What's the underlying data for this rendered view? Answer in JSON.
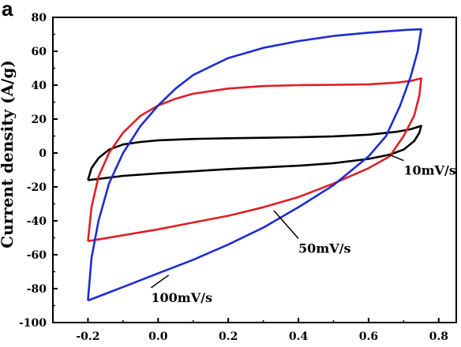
{
  "chart_data": {
    "type": "line",
    "panel_label": "a",
    "ylabel": "Current density (A/g)",
    "xlabel": "",
    "xlim": [
      -0.3,
      0.85
    ],
    "ylim": [
      -100,
      80
    ],
    "xticks": [
      "-0.2",
      "0.0",
      "0.2",
      "0.4",
      "0.6",
      "0.8"
    ],
    "xtick_values": [
      -0.2,
      0.0,
      0.2,
      0.4,
      0.6,
      0.8
    ],
    "yticks": [
      "80",
      "60",
      "40",
      "20",
      "0",
      "-20",
      "-40",
      "-60",
      "-80",
      "-100"
    ],
    "ytick_values": [
      80,
      60,
      40,
      20,
      0,
      -20,
      -40,
      -60,
      -80,
      -100
    ],
    "grid": false,
    "series": [
      {
        "name": "10mV/s",
        "color": "#000000",
        "points": [
          [
            -0.2,
            -16
          ],
          [
            -0.19,
            -9
          ],
          [
            -0.17,
            -3
          ],
          [
            -0.14,
            2
          ],
          [
            -0.1,
            5
          ],
          [
            -0.05,
            6.5
          ],
          [
            0.0,
            7.5
          ],
          [
            0.1,
            8.3
          ],
          [
            0.2,
            8.7
          ],
          [
            0.3,
            9
          ],
          [
            0.4,
            9.3
          ],
          [
            0.5,
            9.8
          ],
          [
            0.6,
            10.8
          ],
          [
            0.68,
            12.5
          ],
          [
            0.72,
            14
          ],
          [
            0.75,
            16
          ],
          [
            0.745,
            12
          ],
          [
            0.73,
            7
          ],
          [
            0.7,
            2
          ],
          [
            0.66,
            -1
          ],
          [
            0.6,
            -3.5
          ],
          [
            0.5,
            -6
          ],
          [
            0.4,
            -7.5
          ],
          [
            0.3,
            -8.5
          ],
          [
            0.2,
            -9.5
          ],
          [
            0.1,
            -10.8
          ],
          [
            0.0,
            -12
          ],
          [
            -0.1,
            -13.5
          ],
          [
            -0.2,
            -16
          ]
        ]
      },
      {
        "name": "50mV/s",
        "color": "#e01f26",
        "points": [
          [
            -0.2,
            -52
          ],
          [
            -0.19,
            -32
          ],
          [
            -0.17,
            -14
          ],
          [
            -0.14,
            0
          ],
          [
            -0.1,
            12
          ],
          [
            -0.05,
            22
          ],
          [
            0.0,
            28
          ],
          [
            0.05,
            32
          ],
          [
            0.1,
            35
          ],
          [
            0.2,
            38
          ],
          [
            0.3,
            39.5
          ],
          [
            0.4,
            40
          ],
          [
            0.5,
            40.2
          ],
          [
            0.6,
            40.5
          ],
          [
            0.68,
            41.5
          ],
          [
            0.72,
            42.5
          ],
          [
            0.75,
            44
          ],
          [
            0.745,
            34
          ],
          [
            0.73,
            22
          ],
          [
            0.7,
            10
          ],
          [
            0.66,
            -2
          ],
          [
            0.6,
            -9
          ],
          [
            0.5,
            -18
          ],
          [
            0.4,
            -26
          ],
          [
            0.3,
            -32
          ],
          [
            0.2,
            -37
          ],
          [
            0.1,
            -41
          ],
          [
            0.0,
            -45
          ],
          [
            -0.1,
            -48.5
          ],
          [
            -0.2,
            -52
          ]
        ]
      },
      {
        "name": "100mV/s",
        "color": "#1c2bd6",
        "points": [
          [
            -0.2,
            -87
          ],
          [
            -0.19,
            -62
          ],
          [
            -0.17,
            -40
          ],
          [
            -0.14,
            -18
          ],
          [
            -0.1,
            0
          ],
          [
            -0.05,
            16
          ],
          [
            0.0,
            28
          ],
          [
            0.05,
            38
          ],
          [
            0.1,
            46
          ],
          [
            0.2,
            56
          ],
          [
            0.3,
            62
          ],
          [
            0.4,
            66
          ],
          [
            0.5,
            69
          ],
          [
            0.6,
            71
          ],
          [
            0.7,
            72.5
          ],
          [
            0.75,
            73
          ],
          [
            0.74,
            60
          ],
          [
            0.72,
            45
          ],
          [
            0.69,
            28
          ],
          [
            0.65,
            10
          ],
          [
            0.6,
            -2
          ],
          [
            0.5,
            -19
          ],
          [
            0.4,
            -32
          ],
          [
            0.3,
            -44
          ],
          [
            0.2,
            -54
          ],
          [
            0.1,
            -63
          ],
          [
            0.0,
            -71
          ],
          [
            -0.1,
            -79
          ],
          [
            -0.2,
            -87
          ]
        ]
      }
    ],
    "annotations": [
      {
        "text": "10mV/s",
        "pointer": [
          0.66,
          -1
        ],
        "label_pos": [
          0.7,
          -11
        ]
      },
      {
        "text": "50mV/s",
        "pointer": [
          0.33,
          -34
        ],
        "label_pos": [
          0.4,
          -57
        ]
      },
      {
        "text": "100mV/s",
        "pointer": [
          0.03,
          -72
        ],
        "label_pos": [
          -0.02,
          -86
        ]
      }
    ]
  }
}
